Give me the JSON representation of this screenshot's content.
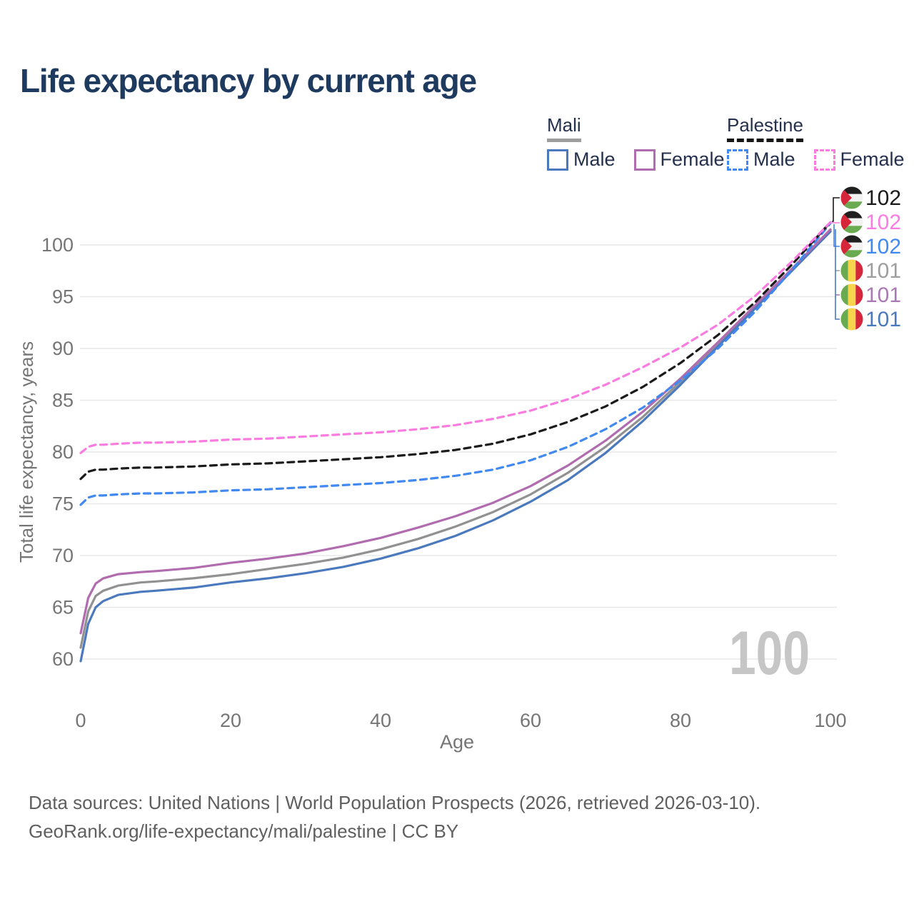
{
  "title": "Life expectancy by current age",
  "watermark": "100",
  "legend": {
    "groups": [
      {
        "label": "Mali",
        "line_style": "solid",
        "underline_color": "#9e9e9e",
        "items": [
          {
            "label": "Male",
            "color": "#4b79bd",
            "dashed": false
          },
          {
            "label": "Female",
            "color": "#b06cae",
            "dashed": false
          }
        ]
      },
      {
        "label": "Palestine",
        "line_style": "dashed",
        "underline_color": "#161616",
        "items": [
          {
            "label": "Male",
            "color": "#4189f0",
            "dashed": true
          },
          {
            "label": "Female",
            "color": "#fb7ce0",
            "dashed": true
          }
        ]
      }
    ]
  },
  "footer": {
    "line1": "Data sources: United Nations | World Population Prospects (2026, retrieved 2026-03-10).",
    "line2": "GeoRank.org/life-expectancy/mali/palestine | CC BY"
  },
  "chart_data": {
    "type": "line",
    "title": "Life expectancy by current age",
    "xlabel": "Age",
    "ylabel": "Total life expectancy, years",
    "x_ticks": [
      0,
      20,
      40,
      60,
      80,
      100
    ],
    "y_ticks": [
      60,
      65,
      70,
      75,
      80,
      85,
      90,
      95,
      100
    ],
    "xlim": [
      0,
      100
    ],
    "grid": "horizontal-only",
    "legend_position": "top-right",
    "ages": [
      0,
      1,
      2,
      3,
      5,
      8,
      10,
      15,
      20,
      25,
      30,
      35,
      40,
      45,
      50,
      55,
      60,
      65,
      70,
      75,
      80,
      85,
      90,
      95,
      100
    ],
    "series": [
      {
        "name": "Mali Total",
        "country": "Mali",
        "sex": "total",
        "color": "#919191",
        "dashed": false,
        "end_value": 101,
        "values": [
          61.1,
          64.6,
          66.1,
          66.6,
          67.1,
          67.4,
          67.5,
          67.8,
          68.2,
          68.7,
          69.2,
          69.8,
          70.6,
          71.6,
          72.8,
          74.2,
          75.9,
          78.0,
          80.5,
          83.4,
          86.8,
          90.4,
          94.0,
          97.7,
          101.4
        ]
      },
      {
        "name": "Mali Male",
        "country": "Mali",
        "sex": "male",
        "color": "#4b79bd",
        "dashed": false,
        "end_value": 101,
        "values": [
          59.8,
          63.4,
          65.0,
          65.6,
          66.2,
          66.5,
          66.6,
          66.9,
          67.4,
          67.8,
          68.3,
          68.9,
          69.7,
          70.7,
          71.9,
          73.4,
          75.2,
          77.3,
          79.9,
          83.0,
          86.5,
          90.2,
          93.9,
          97.6,
          101.3
        ]
      },
      {
        "name": "Mali Female",
        "country": "Mali",
        "sex": "female",
        "color": "#b06cae",
        "dashed": false,
        "end_value": 101,
        "values": [
          62.5,
          65.9,
          67.3,
          67.8,
          68.2,
          68.4,
          68.5,
          68.8,
          69.3,
          69.7,
          70.2,
          70.9,
          71.7,
          72.7,
          73.8,
          75.1,
          76.7,
          78.7,
          81.1,
          83.9,
          87.1,
          90.6,
          94.2,
          97.8,
          101.5
        ]
      },
      {
        "name": "Palestine Male",
        "country": "Palestine",
        "sex": "male",
        "color": "#4189f0",
        "dashed": true,
        "end_value": 102,
        "values": [
          74.9,
          75.6,
          75.8,
          75.8,
          75.9,
          76.0,
          76.0,
          76.1,
          76.3,
          76.4,
          76.6,
          76.8,
          77.0,
          77.3,
          77.7,
          78.3,
          79.2,
          80.5,
          82.2,
          84.3,
          86.9,
          90.0,
          93.6,
          97.7,
          102.1
        ]
      },
      {
        "name": "Palestine Total",
        "country": "Palestine",
        "sex": "total",
        "color": "#1a1a1a",
        "dashed": true,
        "end_value": 102,
        "values": [
          77.4,
          78.1,
          78.3,
          78.3,
          78.4,
          78.5,
          78.5,
          78.6,
          78.8,
          78.9,
          79.1,
          79.3,
          79.5,
          79.8,
          80.2,
          80.8,
          81.7,
          82.9,
          84.4,
          86.3,
          88.6,
          91.3,
          94.5,
          98.2,
          102.2
        ]
      },
      {
        "name": "Palestine Female",
        "country": "Palestine",
        "sex": "female",
        "color": "#fb7ce0",
        "dashed": true,
        "end_value": 102,
        "values": [
          79.9,
          80.5,
          80.7,
          80.7,
          80.8,
          80.9,
          80.9,
          81.0,
          81.2,
          81.3,
          81.5,
          81.7,
          81.9,
          82.2,
          82.6,
          83.2,
          84.0,
          85.1,
          86.5,
          88.2,
          90.1,
          92.3,
          95.1,
          98.5,
          102.2
        ]
      }
    ],
    "end_labels": [
      {
        "flag": "palestine",
        "value": "102",
        "color": "#1a1a1a"
      },
      {
        "flag": "palestine",
        "value": "102",
        "color": "#fb7ce0"
      },
      {
        "flag": "palestine",
        "value": "102",
        "color": "#4189f0"
      },
      {
        "flag": "mali",
        "value": "101",
        "color": "#9e9e9e"
      },
      {
        "flag": "mali",
        "value": "101",
        "color": "#aa78b4"
      },
      {
        "flag": "mali",
        "value": "101",
        "color": "#4b79bd"
      }
    ],
    "flag_colors": {
      "mali": {
        "green": "#6aaa50",
        "yellow": "#f6d44b",
        "red": "#d62639"
      },
      "palestine": {
        "black": "#1f1f1f",
        "white": "#f2f2f2",
        "green": "#6aaa50",
        "red": "#d62639"
      }
    }
  }
}
